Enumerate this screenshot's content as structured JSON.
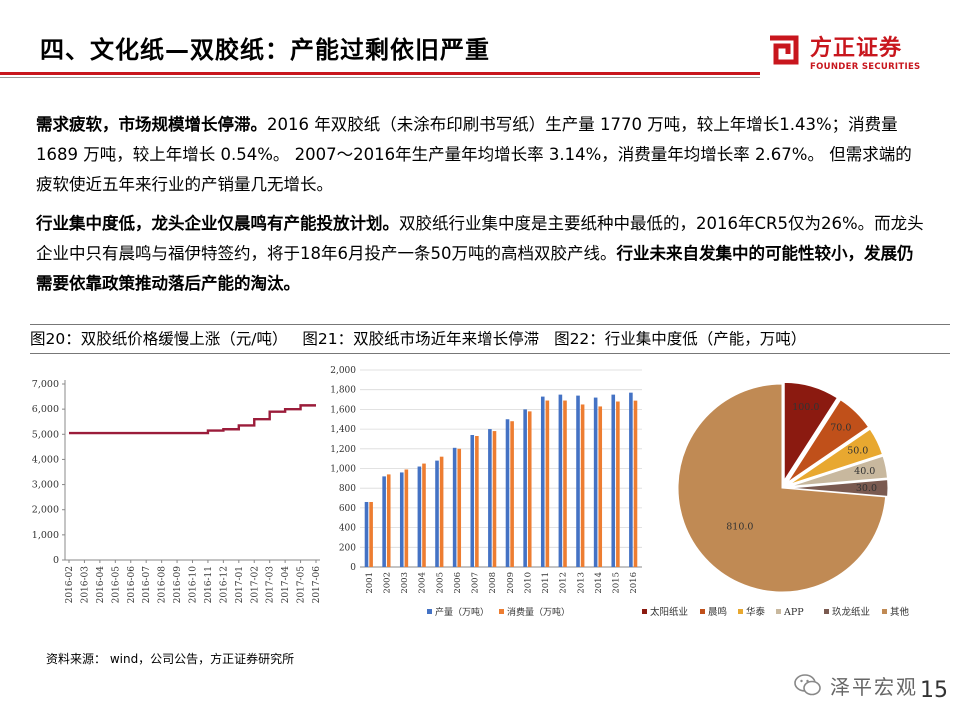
{
  "title": "四、文化纸—双胶纸：产能过剩依旧严重",
  "logo": {
    "name": "方正证券",
    "sub": "FOUNDER SECURITIES"
  },
  "para1": {
    "lead": "需求疲软，市场规模增长停滞。",
    "body": "2016 年双胶纸（未涂布印刷书写纸）生产量 1770 万吨，较上年增长1.43%；消费量 1689 万吨，较上年增长 0.54%。 2007～2016年生产量年均增长率 3.14%，消费量年均增长率 2.67%。 但需求端的疲软使近五年来行业的产销量几无增长。"
  },
  "para2": {
    "lead": "行业集中度低，龙头企业仅晨鸣有产能投放计划。",
    "body": "双胶纸行业集中度是主要纸种中最低的，2016年CR5仅为26%。而龙头企业中只有晨鸣与福伊特签约，将于18年6月投产一条50万吨的高档双胶产线。",
    "tail": "行业未来自发集中的可能性较小，发展仍需要依靠政策推动落后产能的淘汰。"
  },
  "figures": {
    "fig20": "图20：双胶纸价格缓慢上涨（元/吨）",
    "fig21": "图21：双胶纸市场近年来增长停滞",
    "fig22": "图22：行业集中度低（产能，万吨）"
  },
  "source": "资料来源： wind，公司公告，方正证券研究所",
  "wechat": "泽平宏观",
  "page_number": "15",
  "chart_data": [
    {
      "type": "line",
      "title": "图20：双胶纸价格缓慢上涨（元/吨）",
      "x": [
        "2016-02",
        "2016-03",
        "2016-04",
        "2016-05",
        "2016-06",
        "2016-07",
        "2016-08",
        "2016-09",
        "2016-10",
        "2016-11",
        "2016-12",
        "2017-01",
        "2017-02",
        "2017-03",
        "2017-04",
        "2017-05",
        "2017-06"
      ],
      "series": [
        {
          "values": [
            5050,
            5050,
            5050,
            5050,
            5050,
            5050,
            5050,
            5050,
            5050,
            5150,
            5200,
            5350,
            5600,
            5900,
            6000,
            6150,
            6150
          ],
          "color": "#9b1c3a"
        }
      ],
      "ylim": [
        0,
        7000
      ],
      "yticks": [
        0,
        1000,
        2000,
        3000,
        4000,
        5000,
        6000,
        7000
      ],
      "ytick_labels": [
        "0",
        "1,000",
        "2,000",
        "3,000",
        "4,000",
        "5,000",
        "6,000",
        "7,000"
      ],
      "grid": false
    },
    {
      "type": "bar",
      "title": "图21：双胶纸市场近年来增长停滞",
      "categories": [
        "2001",
        "2002",
        "2003",
        "2004",
        "2005",
        "2006",
        "2007",
        "2008",
        "2009",
        "2010",
        "2011",
        "2012",
        "2013",
        "2014",
        "2015",
        "2016"
      ],
      "series": [
        {
          "name": "产量（万吨）",
          "values": [
            660,
            920,
            960,
            1020,
            1080,
            1210,
            1340,
            1400,
            1500,
            1600,
            1730,
            1750,
            1740,
            1720,
            1750,
            1770
          ],
          "color": "#4472c4"
        },
        {
          "name": "消费量（万吨）",
          "values": [
            660,
            940,
            990,
            1050,
            1120,
            1200,
            1330,
            1380,
            1480,
            1580,
            1690,
            1690,
            1650,
            1630,
            1680,
            1689
          ],
          "color": "#ed7d31"
        }
      ],
      "ylim": [
        0,
        2000
      ],
      "yticks": [
        0,
        200,
        400,
        600,
        800,
        1000,
        1200,
        1400,
        1600,
        1800,
        2000
      ],
      "ytick_labels": [
        "0",
        "200",
        "400",
        "600",
        "800",
        "1,000",
        "1,200",
        "1,400",
        "1,600",
        "1,800",
        "2,000"
      ],
      "legend": "bottom",
      "grid": true
    },
    {
      "type": "pie",
      "title": "图22：行业集中度低（产能，万吨）",
      "categories": [
        "太阳纸业",
        "晨鸣",
        "华泰",
        "APP",
        "玖龙纸业",
        "其他"
      ],
      "values": [
        100,
        70,
        50,
        40,
        30,
        810
      ],
      "value_labels": [
        "100.0",
        "70.0",
        "50.0",
        "40.0",
        "30.0",
        "810.0"
      ],
      "colors": [
        "#8b1a10",
        "#c0501a",
        "#e8a830",
        "#c8b89e",
        "#7a5a50",
        "#c08a54"
      ],
      "legend": "bottom"
    }
  ]
}
